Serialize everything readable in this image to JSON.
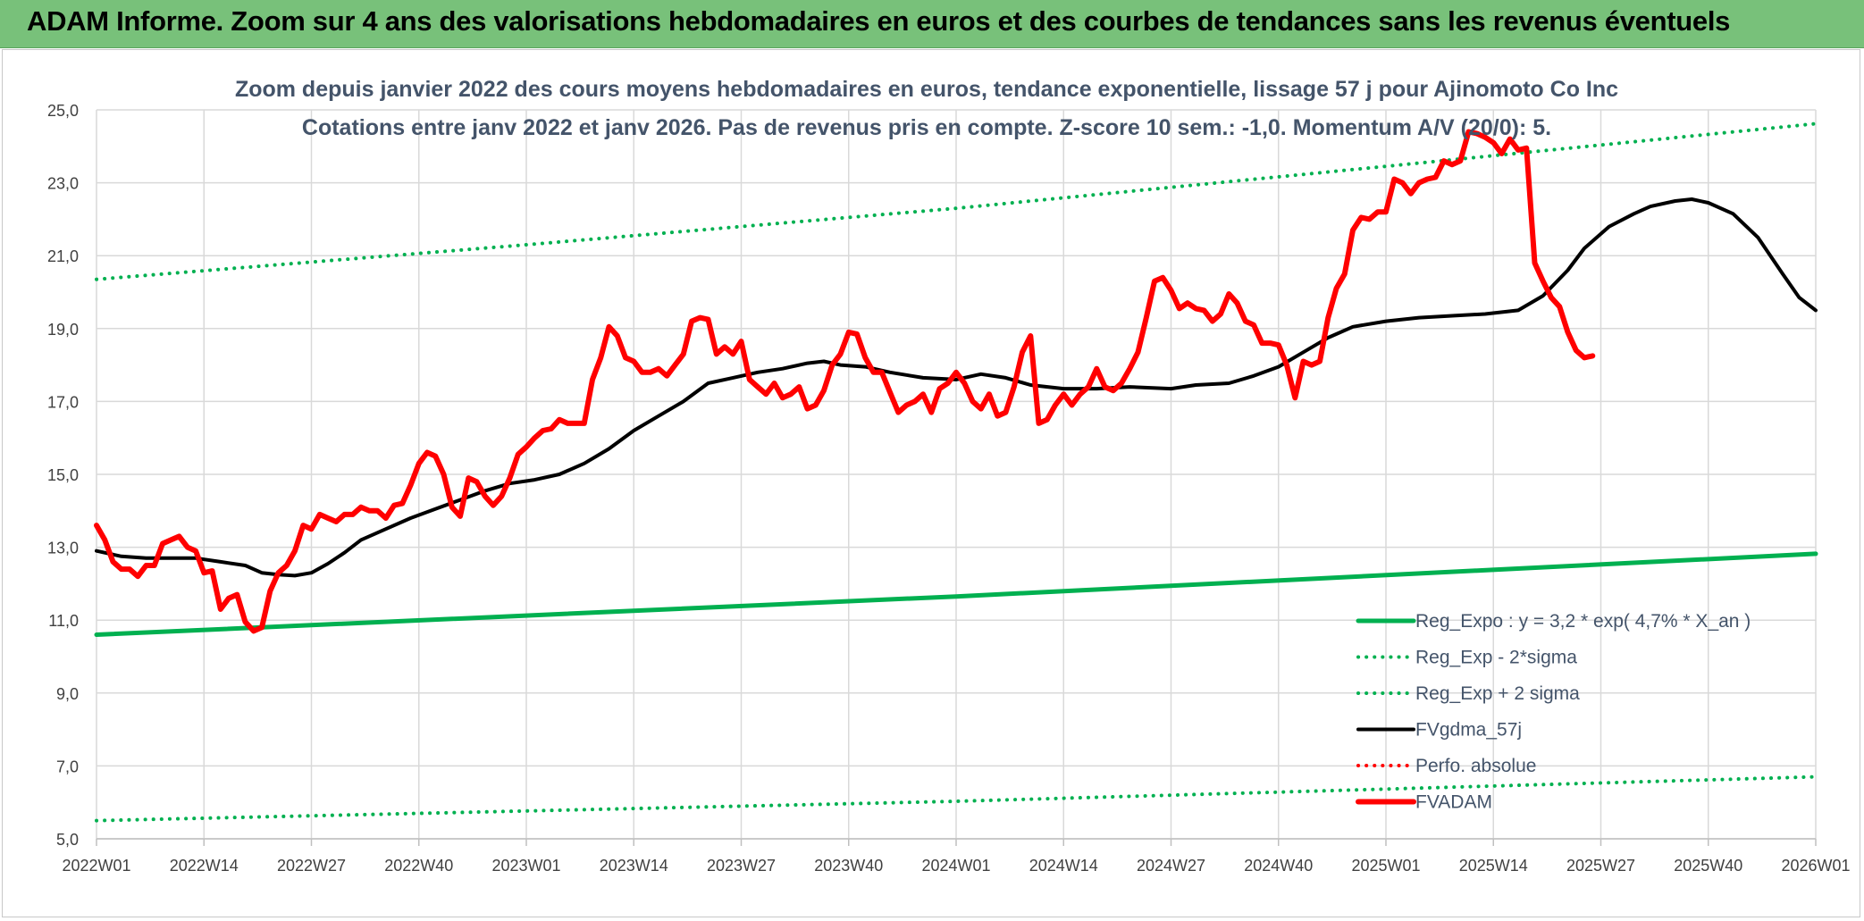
{
  "banner": {
    "title": "ADAM Informe. Zoom sur 4 ans des valorisations hebdomadaires en euros et des courbes de tendances sans les revenus éventuels"
  },
  "colors": {
    "banner_bg": "#78c17a",
    "green": "#00b050",
    "red": "#ff0000",
    "black": "#000000",
    "text": "#44546a",
    "grid": "#d9d9d9"
  },
  "chart_data": {
    "type": "line",
    "title": "Zoom depuis janvier 2022 des cours moyens hebdomadaires en euros, tendance exponentielle, lissage 57 j pour Ajinomoto Co Inc",
    "subtitle": "Cotations entre janv 2022 et janv 2026. Pas de revenus pris en compte. Z-score 10 sem.: -1,0. Momentum A/V (20/0): 5.",
    "xlabel": "",
    "ylabel": "",
    "ylim": [
      5.0,
      25.0
    ],
    "y_ticks": [
      "25,0",
      "23,0",
      "21,0",
      "19,0",
      "17,0",
      "15,0",
      "13,0",
      "11,0",
      "9,0",
      "7,0",
      "5,0"
    ],
    "x_range_weeks": [
      0,
      208
    ],
    "x_ticks": [
      {
        "label": "2022W01",
        "week": 0
      },
      {
        "label": "2022W14",
        "week": 13
      },
      {
        "label": "2022W27",
        "week": 26
      },
      {
        "label": "2022W40",
        "week": 39
      },
      {
        "label": "2023W01",
        "week": 52
      },
      {
        "label": "2023W14",
        "week": 65
      },
      {
        "label": "2023W27",
        "week": 78
      },
      {
        "label": "2023W40",
        "week": 91
      },
      {
        "label": "2024W01",
        "week": 104
      },
      {
        "label": "2024W14",
        "week": 117
      },
      {
        "label": "2024W27",
        "week": 130
      },
      {
        "label": "2024W40",
        "week": 143
      },
      {
        "label": "2025W01",
        "week": 156
      },
      {
        "label": "2025W14",
        "week": 169
      },
      {
        "label": "2025W27",
        "week": 182
      },
      {
        "label": "2025W40",
        "week": 195
      },
      {
        "label": "2026W01",
        "week": 208
      }
    ],
    "legend": [
      {
        "label": "Reg_Expo : y = 3,2 * exp( 4,7% *  X_an )",
        "color": "#00b050",
        "style": "solid",
        "width": 5
      },
      {
        "label": "Reg_Exp - 2*sigma",
        "color": "#00b050",
        "style": "dotted",
        "width": 4
      },
      {
        "label": "Reg_Exp + 2 sigma",
        "color": "#00b050",
        "style": "dotted",
        "width": 4
      },
      {
        "label": "FVgdma_57j",
        "color": "#000000",
        "style": "solid",
        "width": 4
      },
      {
        "label": "Perfo. absolue",
        "color": "#ff0000",
        "style": "dotted",
        "width": 4
      },
      {
        "label": "FVADAM",
        "color": "#ff0000",
        "style": "solid",
        "width": 6
      }
    ],
    "series": [
      {
        "name": "Reg_Expo",
        "color": "#00b050",
        "style": "solid",
        "width": 5,
        "points": [
          [
            0,
            10.6
          ],
          [
            104,
            11.65
          ],
          [
            208,
            12.82
          ]
        ]
      },
      {
        "name": "Reg_Exp - 2*sigma",
        "color": "#00b050",
        "style": "dotted",
        "width": 4,
        "points": [
          [
            0,
            5.5
          ],
          [
            104,
            6.03
          ],
          [
            208,
            6.7
          ]
        ]
      },
      {
        "name": "Reg_Exp + 2 sigma",
        "color": "#00b050",
        "style": "dotted",
        "width": 4,
        "points": [
          [
            0,
            20.35
          ],
          [
            52,
            21.3
          ],
          [
            104,
            22.3
          ],
          [
            156,
            23.45
          ],
          [
            208,
            24.62
          ]
        ]
      },
      {
        "name": "FVgdma_57j",
        "color": "#000000",
        "style": "solid",
        "width": 4,
        "points": [
          [
            0,
            12.9
          ],
          [
            3,
            12.75
          ],
          [
            6,
            12.7
          ],
          [
            9,
            12.7
          ],
          [
            12,
            12.7
          ],
          [
            15,
            12.6
          ],
          [
            18,
            12.5
          ],
          [
            20,
            12.3
          ],
          [
            22,
            12.25
          ],
          [
            24,
            12.22
          ],
          [
            26,
            12.3
          ],
          [
            28,
            12.55
          ],
          [
            30,
            12.85
          ],
          [
            32,
            13.2
          ],
          [
            35,
            13.5
          ],
          [
            38,
            13.8
          ],
          [
            41,
            14.05
          ],
          [
            44,
            14.3
          ],
          [
            47,
            14.55
          ],
          [
            50,
            14.75
          ],
          [
            53,
            14.85
          ],
          [
            56,
            15.0
          ],
          [
            59,
            15.3
          ],
          [
            62,
            15.7
          ],
          [
            65,
            16.2
          ],
          [
            68,
            16.6
          ],
          [
            71,
            17.0
          ],
          [
            74,
            17.5
          ],
          [
            77,
            17.65
          ],
          [
            80,
            17.8
          ],
          [
            83,
            17.9
          ],
          [
            86,
            18.05
          ],
          [
            88,
            18.1
          ],
          [
            90,
            18.0
          ],
          [
            93,
            17.95
          ],
          [
            96,
            17.8
          ],
          [
            100,
            17.65
          ],
          [
            104,
            17.6
          ],
          [
            107,
            17.75
          ],
          [
            110,
            17.65
          ],
          [
            113,
            17.45
          ],
          [
            117,
            17.35
          ],
          [
            121,
            17.35
          ],
          [
            125,
            17.4
          ],
          [
            130,
            17.35
          ],
          [
            133,
            17.45
          ],
          [
            137,
            17.5
          ],
          [
            140,
            17.7
          ],
          [
            143,
            17.95
          ],
          [
            146,
            18.35
          ],
          [
            149,
            18.75
          ],
          [
            152,
            19.05
          ],
          [
            156,
            19.2
          ],
          [
            160,
            19.3
          ],
          [
            164,
            19.35
          ],
          [
            168,
            19.4
          ],
          [
            172,
            19.5
          ],
          [
            175,
            19.9
          ],
          [
            178,
            20.6
          ],
          [
            180,
            21.2
          ],
          [
            183,
            21.8
          ],
          [
            186,
            22.15
          ],
          [
            188,
            22.35
          ],
          [
            191,
            22.5
          ],
          [
            193,
            22.55
          ],
          [
            195,
            22.45
          ],
          [
            198,
            22.15
          ],
          [
            201,
            21.5
          ],
          [
            204,
            20.5
          ],
          [
            206,
            19.85
          ],
          [
            208,
            19.5
          ]
        ]
      },
      {
        "name": "FVADAM",
        "color": "#ff0000",
        "style": "solid",
        "width": 6,
        "points": [
          [
            0,
            13.6
          ],
          [
            1,
            13.2
          ],
          [
            2,
            12.6
          ],
          [
            3,
            12.4
          ],
          [
            4,
            12.4
          ],
          [
            5,
            12.2
          ],
          [
            6,
            12.5
          ],
          [
            7,
            12.5
          ],
          [
            8,
            13.1
          ],
          [
            9,
            13.2
          ],
          [
            10,
            13.3
          ],
          [
            11,
            13.0
          ],
          [
            12,
            12.9
          ],
          [
            13,
            12.3
          ],
          [
            14,
            12.35
          ],
          [
            15,
            11.3
          ],
          [
            16,
            11.6
          ],
          [
            17,
            11.7
          ],
          [
            18,
            10.95
          ],
          [
            19,
            10.7
          ],
          [
            20,
            10.8
          ],
          [
            21,
            11.8
          ],
          [
            22,
            12.3
          ],
          [
            23,
            12.5
          ],
          [
            24,
            12.9
          ],
          [
            25,
            13.6
          ],
          [
            26,
            13.5
          ],
          [
            27,
            13.9
          ],
          [
            28,
            13.8
          ],
          [
            29,
            13.7
          ],
          [
            30,
            13.9
          ],
          [
            31,
            13.9
          ],
          [
            32,
            14.1
          ],
          [
            33,
            14.0
          ],
          [
            34,
            14.0
          ],
          [
            35,
            13.8
          ],
          [
            36,
            14.15
          ],
          [
            37,
            14.2
          ],
          [
            38,
            14.7
          ],
          [
            39,
            15.3
          ],
          [
            40,
            15.6
          ],
          [
            41,
            15.5
          ],
          [
            42,
            15.0
          ],
          [
            43,
            14.1
          ],
          [
            44,
            13.85
          ],
          [
            45,
            14.9
          ],
          [
            46,
            14.8
          ],
          [
            47,
            14.4
          ],
          [
            48,
            14.15
          ],
          [
            49,
            14.4
          ],
          [
            50,
            14.9
          ],
          [
            51,
            15.55
          ],
          [
            52,
            15.75
          ],
          [
            53,
            16.0
          ],
          [
            54,
            16.2
          ],
          [
            55,
            16.25
          ],
          [
            56,
            16.5
          ],
          [
            57,
            16.4
          ],
          [
            58,
            16.4
          ],
          [
            59,
            16.4
          ],
          [
            60,
            17.6
          ],
          [
            61,
            18.2
          ],
          [
            62,
            19.05
          ],
          [
            63,
            18.8
          ],
          [
            64,
            18.2
          ],
          [
            65,
            18.1
          ],
          [
            66,
            17.8
          ],
          [
            67,
            17.8
          ],
          [
            68,
            17.9
          ],
          [
            69,
            17.7
          ],
          [
            70,
            18.0
          ],
          [
            71,
            18.3
          ],
          [
            72,
            19.2
          ],
          [
            73,
            19.3
          ],
          [
            74,
            19.25
          ],
          [
            75,
            18.3
          ],
          [
            76,
            18.5
          ],
          [
            77,
            18.3
          ],
          [
            78,
            18.65
          ],
          [
            79,
            17.6
          ],
          [
            80,
            17.4
          ],
          [
            81,
            17.2
          ],
          [
            82,
            17.5
          ],
          [
            83,
            17.1
          ],
          [
            84,
            17.2
          ],
          [
            85,
            17.4
          ],
          [
            86,
            16.8
          ],
          [
            87,
            16.9
          ],
          [
            88,
            17.3
          ],
          [
            89,
            18.0
          ],
          [
            90,
            18.3
          ],
          [
            91,
            18.9
          ],
          [
            92,
            18.85
          ],
          [
            93,
            18.2
          ],
          [
            94,
            17.8
          ],
          [
            95,
            17.8
          ],
          [
            96,
            17.25
          ],
          [
            97,
            16.7
          ],
          [
            98,
            16.9
          ],
          [
            99,
            17.0
          ],
          [
            100,
            17.2
          ],
          [
            101,
            16.7
          ],
          [
            102,
            17.35
          ],
          [
            103,
            17.5
          ],
          [
            104,
            17.8
          ],
          [
            105,
            17.5
          ],
          [
            106,
            17.0
          ],
          [
            107,
            16.8
          ],
          [
            108,
            17.2
          ],
          [
            109,
            16.6
          ],
          [
            110,
            16.7
          ],
          [
            111,
            17.4
          ],
          [
            112,
            18.35
          ],
          [
            113,
            18.8
          ],
          [
            114,
            16.4
          ],
          [
            115,
            16.5
          ],
          [
            116,
            16.9
          ],
          [
            117,
            17.2
          ],
          [
            118,
            16.9
          ],
          [
            119,
            17.2
          ],
          [
            120,
            17.4
          ],
          [
            121,
            17.9
          ],
          [
            122,
            17.4
          ],
          [
            123,
            17.3
          ],
          [
            124,
            17.5
          ],
          [
            125,
            17.9
          ],
          [
            126,
            18.35
          ],
          [
            127,
            19.3
          ],
          [
            128,
            20.3
          ],
          [
            129,
            20.4
          ],
          [
            130,
            20.05
          ],
          [
            131,
            19.55
          ],
          [
            132,
            19.7
          ],
          [
            133,
            19.55
          ],
          [
            134,
            19.5
          ],
          [
            135,
            19.2
          ],
          [
            136,
            19.4
          ],
          [
            137,
            19.95
          ],
          [
            138,
            19.7
          ],
          [
            139,
            19.2
          ],
          [
            140,
            19.1
          ],
          [
            141,
            18.6
          ],
          [
            142,
            18.6
          ],
          [
            143,
            18.55
          ],
          [
            144,
            18.0
          ],
          [
            145,
            17.1
          ],
          [
            146,
            18.1
          ],
          [
            147,
            18.0
          ],
          [
            148,
            18.1
          ],
          [
            149,
            19.3
          ],
          [
            150,
            20.1
          ],
          [
            151,
            20.5
          ],
          [
            152,
            21.7
          ],
          [
            153,
            22.05
          ],
          [
            154,
            22.0
          ],
          [
            155,
            22.2
          ],
          [
            156,
            22.2
          ],
          [
            157,
            23.1
          ],
          [
            158,
            23.0
          ],
          [
            159,
            22.7
          ],
          [
            160,
            23.0
          ],
          [
            161,
            23.1
          ],
          [
            162,
            23.15
          ],
          [
            163,
            23.6
          ],
          [
            164,
            23.5
          ],
          [
            165,
            23.6
          ],
          [
            166,
            24.4
          ],
          [
            167,
            24.35
          ],
          [
            168,
            24.25
          ],
          [
            169,
            24.1
          ],
          [
            170,
            23.8
          ],
          [
            171,
            24.2
          ],
          [
            172,
            23.9
          ],
          [
            173,
            23.95
          ],
          [
            174,
            20.8
          ],
          [
            175,
            20.3
          ],
          [
            176,
            19.85
          ],
          [
            177,
            19.6
          ],
          [
            178,
            18.9
          ],
          [
            179,
            18.4
          ],
          [
            180,
            18.2
          ],
          [
            181,
            18.25
          ]
        ]
      }
    ]
  }
}
